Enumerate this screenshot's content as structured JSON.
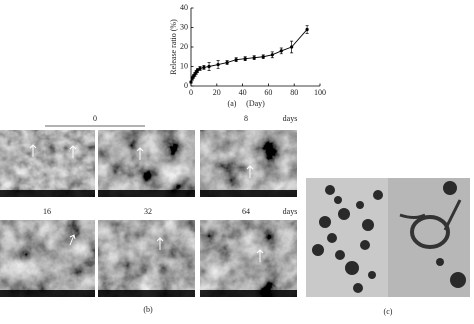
{
  "chart_data": {
    "type": "line",
    "y_label": "Release ratio (%)",
    "x_label": "(Day)",
    "x": [
      0,
      1,
      2,
      3,
      4,
      5,
      7,
      10,
      14,
      21,
      28,
      35,
      42,
      49,
      56,
      63,
      70,
      78,
      90
    ],
    "series": [
      {
        "color": "#000000",
        "values": [
          2,
          4,
          5,
          6,
          7,
          8,
          9,
          9.5,
          10,
          11,
          12,
          13.5,
          14,
          14.5,
          15,
          16,
          18,
          20,
          29
        ],
        "errors": [
          0.5,
          1,
          1,
          1,
          1,
          1,
          1,
          1,
          2,
          2,
          1,
          1,
          1,
          1,
          1,
          1.5,
          1.5,
          3,
          2
        ]
      }
    ],
    "xlim": [
      0,
      100
    ],
    "ylim": [
      0,
      40
    ],
    "xticks": [
      0,
      20,
      40,
      60,
      80,
      100
    ],
    "yticks": [
      0,
      10,
      20,
      30,
      40
    ]
  },
  "figure": {
    "panel_a": "(a)",
    "panel_b": "(b)",
    "panel_c": "(c)",
    "b_labels": [
      "0",
      "8",
      "days",
      "16",
      "32",
      "64",
      "days"
    ]
  }
}
